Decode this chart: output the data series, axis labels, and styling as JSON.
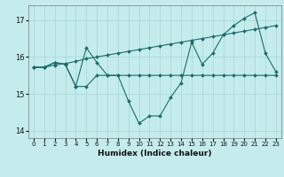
{
  "xlabel": "Humidex (Indice chaleur)",
  "background_color": "#c5ecec",
  "grid_color": "#aad8d8",
  "line_color": "#1a6b6b",
  "marker_color": "#1a6b6b",
  "xlim": [
    -0.5,
    23.5
  ],
  "ylim": [
    13.8,
    17.4
  ],
  "yticks": [
    14,
    15,
    16,
    17
  ],
  "xticks": [
    0,
    1,
    2,
    3,
    4,
    5,
    6,
    7,
    8,
    9,
    10,
    11,
    12,
    13,
    14,
    15,
    16,
    17,
    18,
    19,
    20,
    21,
    22,
    23
  ],
  "series1_x": [
    0,
    1,
    2,
    3,
    4,
    5,
    6,
    7,
    8,
    9,
    10,
    11,
    12,
    13,
    14,
    15,
    16,
    17,
    18,
    19,
    20,
    21,
    22,
    23
  ],
  "series1_y": [
    15.72,
    15.72,
    15.78,
    15.82,
    15.88,
    15.95,
    16.0,
    16.05,
    16.1,
    16.15,
    16.2,
    16.25,
    16.3,
    16.35,
    16.4,
    16.45,
    16.5,
    16.55,
    16.6,
    16.65,
    16.7,
    16.75,
    16.8,
    16.85
  ],
  "series2_x": [
    0,
    1,
    2,
    3,
    4,
    5,
    6,
    7,
    8,
    9,
    10,
    11,
    12,
    13,
    14,
    15,
    16,
    17,
    18,
    19,
    20,
    21,
    22,
    23
  ],
  "series2_y": [
    15.72,
    15.72,
    15.85,
    15.8,
    15.2,
    16.25,
    15.85,
    15.5,
    15.5,
    14.8,
    14.2,
    14.4,
    14.4,
    14.9,
    15.3,
    16.4,
    15.8,
    16.1,
    16.6,
    16.85,
    17.05,
    17.2,
    16.1,
    15.6
  ],
  "series3_x": [
    0,
    1,
    2,
    3,
    4,
    5,
    6,
    7,
    8,
    9,
    10,
    11,
    12,
    13,
    14,
    15,
    16,
    17,
    18,
    19,
    20,
    21,
    22,
    23
  ],
  "series3_y": [
    15.72,
    15.72,
    15.85,
    15.8,
    15.2,
    15.2,
    15.5,
    15.5,
    15.5,
    15.5,
    15.5,
    15.5,
    15.5,
    15.5,
    15.5,
    15.5,
    15.5,
    15.5,
    15.5,
    15.5,
    15.5,
    15.5,
    15.5,
    15.5
  ]
}
